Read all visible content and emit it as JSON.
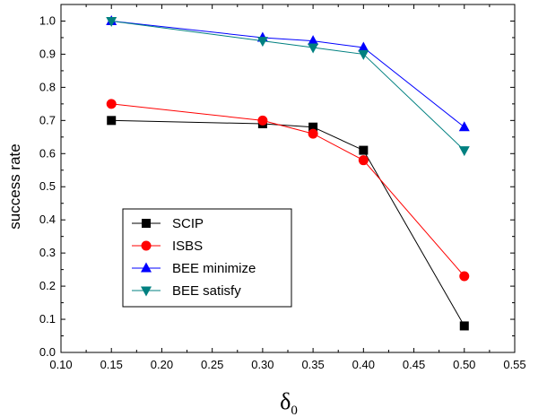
{
  "chart_data": {
    "type": "line",
    "title": "",
    "xlabel_main": "δ",
    "xlabel_sub": "0",
    "ylabel": "success rate",
    "xlim": [
      0.1,
      0.55
    ],
    "ylim": [
      0.0,
      1.05
    ],
    "x_ticks": [
      "0.10",
      "0.15",
      "0.20",
      "0.25",
      "0.30",
      "0.35",
      "0.40",
      "0.45",
      "0.50",
      "0.55"
    ],
    "y_ticks": [
      "0.0",
      "0.1",
      "0.2",
      "0.3",
      "0.4",
      "0.5",
      "0.6",
      "0.7",
      "0.8",
      "0.9",
      "1.0"
    ],
    "x": [
      0.15,
      0.3,
      0.35,
      0.4,
      0.5
    ],
    "grid": false,
    "legend_position": "bottom-left",
    "series": [
      {
        "name": "SCIP",
        "values": [
          0.7,
          0.69,
          0.68,
          0.61,
          0.08
        ],
        "color": "#000000",
        "marker": "square"
      },
      {
        "name": "ISBS",
        "values": [
          0.75,
          0.7,
          0.66,
          0.58,
          0.23
        ],
        "color": "#ff0000",
        "marker": "circle"
      },
      {
        "name": "BEE minimize",
        "values": [
          1.0,
          0.95,
          0.94,
          0.92,
          0.68
        ],
        "color": "#0000ff",
        "marker": "triangle-up"
      },
      {
        "name": "BEE satisfy",
        "values": [
          1.0,
          0.94,
          0.92,
          0.9,
          0.61
        ],
        "color": "#008080",
        "marker": "triangle-down"
      }
    ]
  }
}
